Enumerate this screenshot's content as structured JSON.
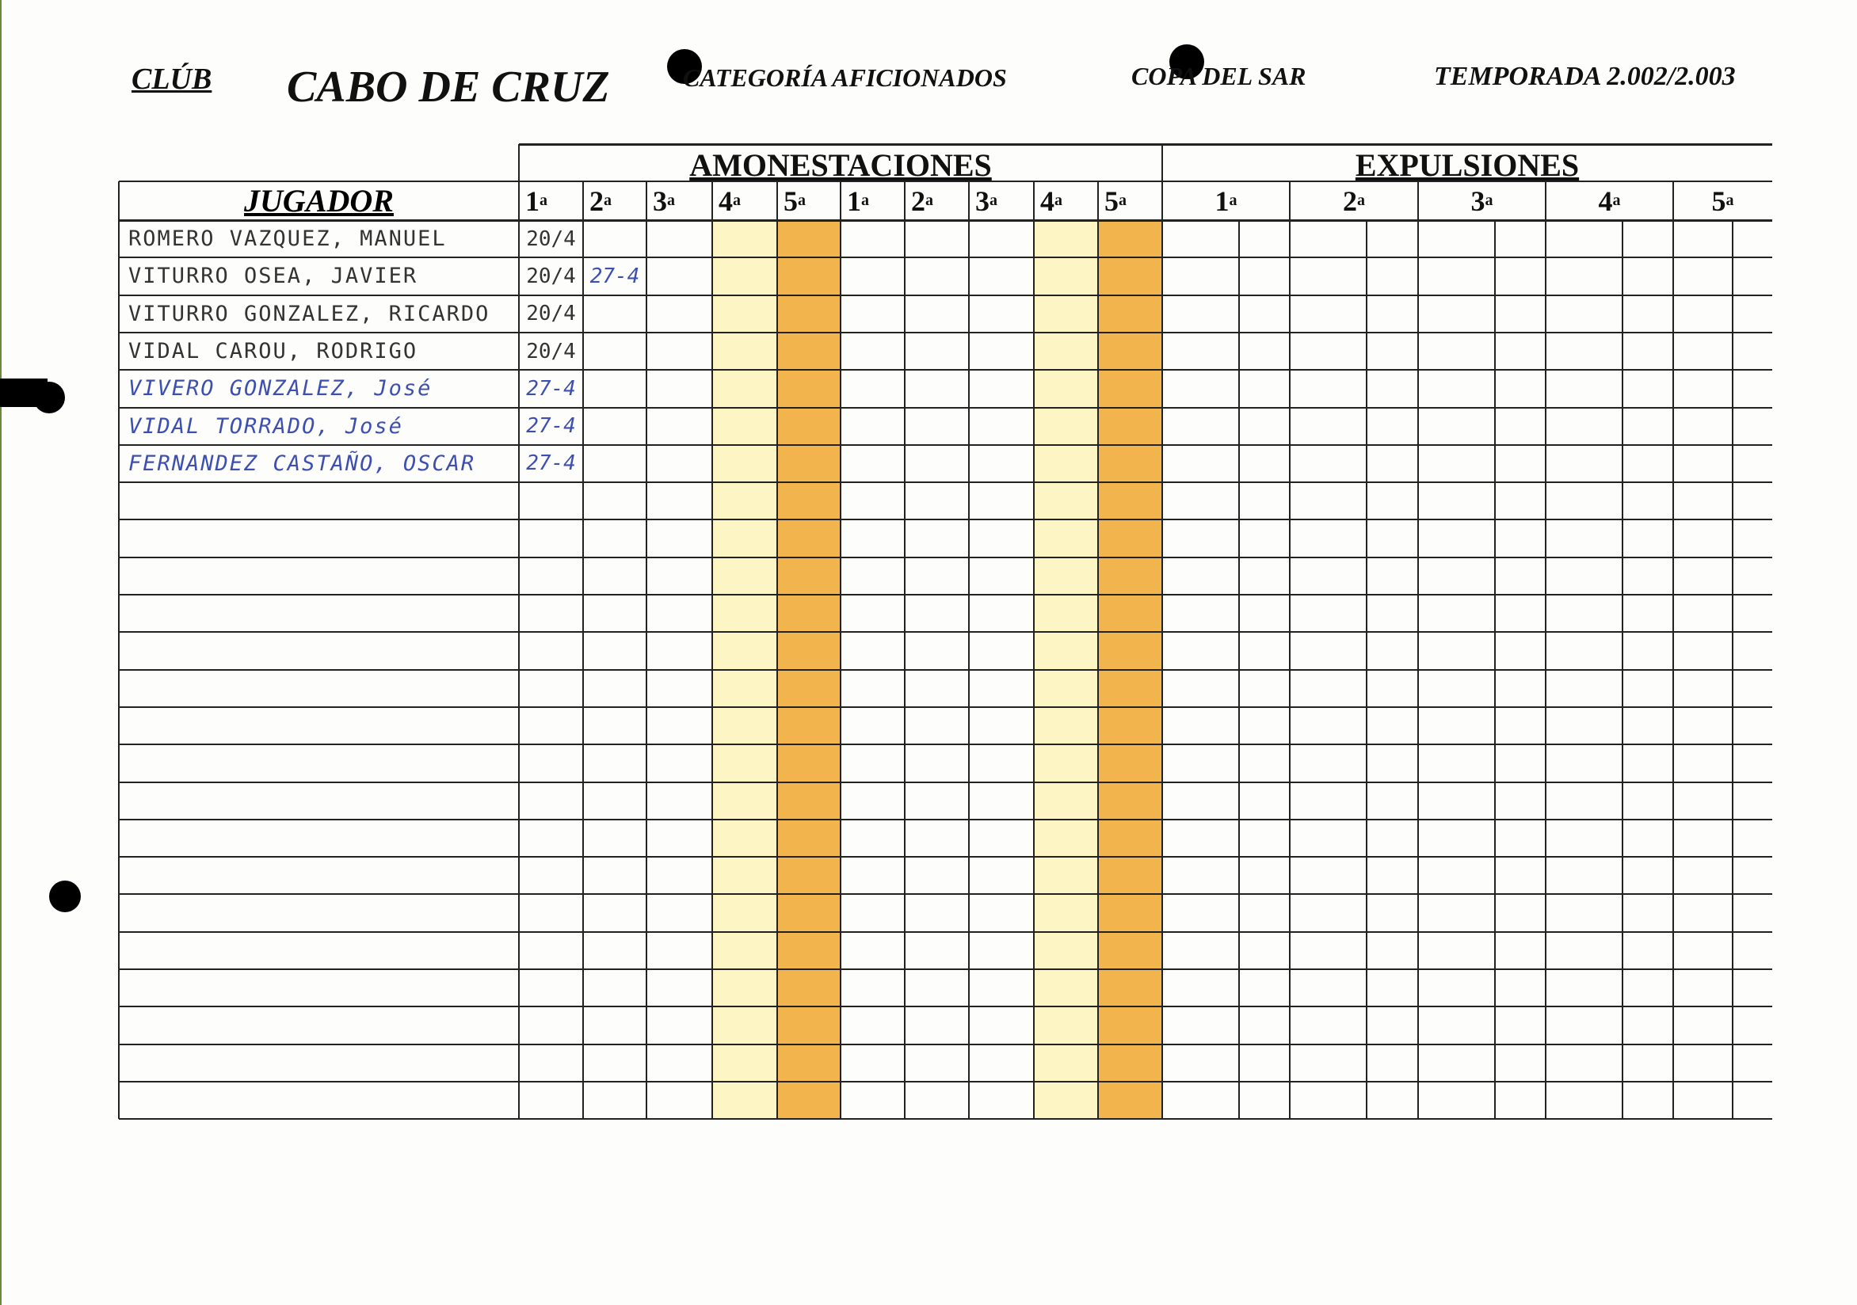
{
  "header": {
    "club_label": "CLÚB",
    "club_name": "CABO DE CRUZ",
    "category": "CATEGORÍA   AFICIONADOS",
    "competition": "COPA DEL SAR",
    "season": "TEMPORADA 2.002/2.003"
  },
  "table": {
    "player_header": "JUGADOR",
    "warnings_header": "AMONESTACIONES",
    "expulsions_header": "EXPULSIONES",
    "warning_columns": [
      "1",
      "2",
      "3",
      "4",
      "5",
      "1",
      "2",
      "3",
      "4",
      "5"
    ],
    "expulsion_columns": [
      "1",
      "2",
      "3",
      "4",
      "5"
    ],
    "ordinal_suffix": "a",
    "colors": {
      "light_yellow": "#fdf5c4",
      "orange": "#f2b54e",
      "ink_blue": "#3d4fb0",
      "ink_black": "#333333"
    },
    "players": [
      {
        "name": "ROMERO VAZQUEZ, MANUEL",
        "w1": "20/4",
        "w2": "",
        "ink": "black"
      },
      {
        "name": "VITURRO OSEA, JAVIER",
        "w1": "20/4",
        "w2": "27-4",
        "ink": "black"
      },
      {
        "name": "VITURRO GONZALEZ, RICARDO",
        "w1": "20/4",
        "w2": "",
        "ink": "black"
      },
      {
        "name": "VIDAL CAROU, RODRIGO",
        "w1": "20/4",
        "w2": "",
        "ink": "black"
      },
      {
        "name": "VIVERO GONZALEZ, José",
        "w1": "27-4",
        "w2": "",
        "ink": "blue"
      },
      {
        "name": "VIDAL TORRADO, José",
        "w1": "27-4",
        "w2": "",
        "ink": "blue"
      },
      {
        "name": "FERNANDEZ CASTAÑO, OSCAR",
        "w1": "27-4",
        "w2": "",
        "ink": "blue"
      }
    ]
  }
}
